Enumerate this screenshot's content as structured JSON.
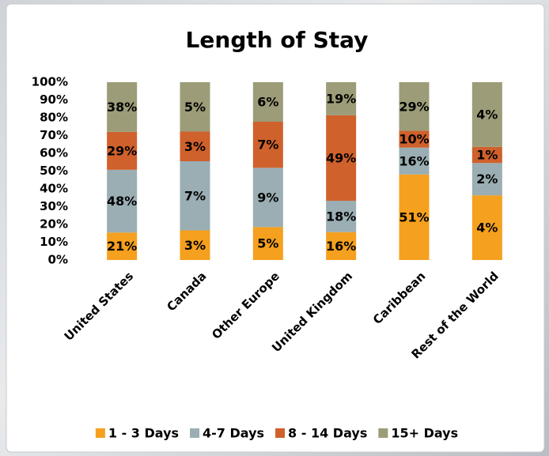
{
  "chart_data": {
    "type": "bar",
    "stacking": "percent",
    "title": "Length of Stay",
    "categories": [
      "United States",
      "Canada",
      "Other Europe",
      "United Kingdom",
      "Caribbean",
      "Rest of the World"
    ],
    "series": [
      {
        "name": "1 - 3 Days",
        "color": "#f5a01e",
        "values": [
          21,
          3,
          5,
          16,
          51,
          4
        ]
      },
      {
        "name": "4-7 Days",
        "color": "#9aaeb3",
        "values": [
          48,
          7,
          9,
          18,
          16,
          2
        ]
      },
      {
        "name": "8 - 14 Days",
        "color": "#cf612c",
        "values": [
          29,
          3,
          7,
          49,
          10,
          1
        ]
      },
      {
        "name": "15+ Days",
        "color": "#9c9c78",
        "values": [
          38,
          5,
          6,
          19,
          29,
          4
        ]
      }
    ],
    "value_labels": [
      [
        "21%",
        "3%",
        "5%",
        "16%",
        "51%",
        "4%"
      ],
      [
        "48%",
        "7%",
        "9%",
        "18%",
        "16%",
        "2%"
      ],
      [
        "29%",
        "3%",
        "7%",
        "49%",
        "10%",
        "1%"
      ],
      [
        "38%",
        "5%",
        "6%",
        "19%",
        "29%",
        "4%"
      ]
    ],
    "ylim": [
      0,
      100
    ],
    "yticks": [
      {
        "value": 0,
        "label": "0%"
      },
      {
        "value": 10,
        "label": "10%"
      },
      {
        "value": 20,
        "label": "20%"
      },
      {
        "value": 30,
        "label": "30%"
      },
      {
        "value": 40,
        "label": "40%"
      },
      {
        "value": 50,
        "label": "50%"
      },
      {
        "value": 60,
        "label": "60%"
      },
      {
        "value": 70,
        "label": "70%"
      },
      {
        "value": 80,
        "label": "80%"
      },
      {
        "value": 90,
        "label": "90%"
      },
      {
        "value": 100,
        "label": "100%"
      }
    ],
    "legend": "bottom"
  }
}
